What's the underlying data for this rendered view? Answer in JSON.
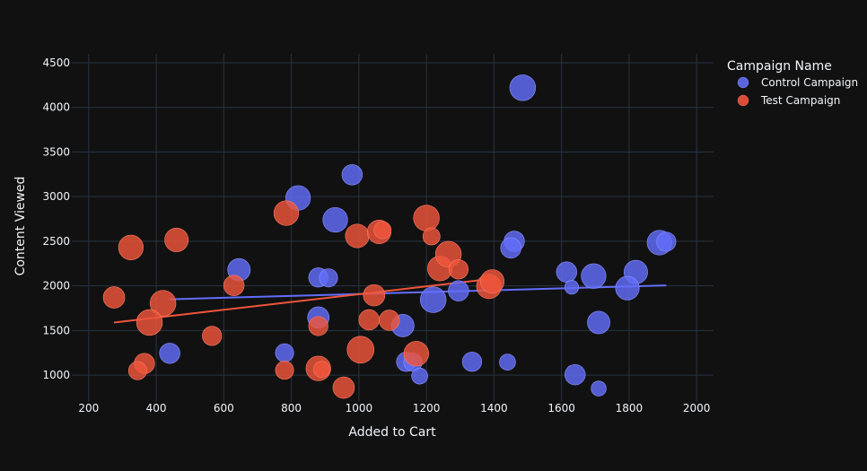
{
  "chart_data": {
    "type": "scatter",
    "title": "",
    "xlabel": "Added to Cart",
    "ylabel": "Content Viewed",
    "xlim": [
      150,
      2050
    ],
    "ylim": [
      700,
      4600
    ],
    "xticks": [
      200,
      400,
      600,
      800,
      1000,
      1200,
      1400,
      1600,
      1800,
      2000
    ],
    "yticks": [
      1000,
      1500,
      2000,
      2500,
      3000,
      3500,
      4000,
      4500
    ],
    "legend_title": "Campaign Name",
    "legend_position": "top-right",
    "series": [
      {
        "name": "Control Campaign",
        "color": "#636efa",
        "trendline": [
          [
            440,
            1850
          ],
          [
            1910,
            2005
          ]
        ],
        "points": [
          {
            "x": 1485,
            "y": 4220,
            "size": 1.2
          },
          {
            "x": 980,
            "y": 3245,
            "size": 0.95
          },
          {
            "x": 820,
            "y": 2985,
            "size": 1.15
          },
          {
            "x": 930,
            "y": 2740,
            "size": 1.15
          },
          {
            "x": 645,
            "y": 2180,
            "size": 1.05
          },
          {
            "x": 880,
            "y": 2095,
            "size": 0.9
          },
          {
            "x": 910,
            "y": 2090,
            "size": 0.85
          },
          {
            "x": 1460,
            "y": 2500,
            "size": 0.95
          },
          {
            "x": 1450,
            "y": 2425,
            "size": 0.95
          },
          {
            "x": 1615,
            "y": 2155,
            "size": 0.95
          },
          {
            "x": 1630,
            "y": 1985,
            "size": 0.65
          },
          {
            "x": 1695,
            "y": 2110,
            "size": 1.15
          },
          {
            "x": 1820,
            "y": 2155,
            "size": 1.1
          },
          {
            "x": 1795,
            "y": 1975,
            "size": 1.1
          },
          {
            "x": 1890,
            "y": 2485,
            "size": 1.15
          },
          {
            "x": 1910,
            "y": 2495,
            "size": 0.9
          },
          {
            "x": 1295,
            "y": 1945,
            "size": 0.95
          },
          {
            "x": 1220,
            "y": 1845,
            "size": 1.2
          },
          {
            "x": 880,
            "y": 1645,
            "size": 1.0
          },
          {
            "x": 1130,
            "y": 1555,
            "size": 1.05
          },
          {
            "x": 1710,
            "y": 1590,
            "size": 1.05
          },
          {
            "x": 440,
            "y": 1245,
            "size": 0.95
          },
          {
            "x": 780,
            "y": 1250,
            "size": 0.85
          },
          {
            "x": 1140,
            "y": 1150,
            "size": 0.9
          },
          {
            "x": 1160,
            "y": 1145,
            "size": 0.85
          },
          {
            "x": 1180,
            "y": 990,
            "size": 0.75
          },
          {
            "x": 1335,
            "y": 1150,
            "size": 0.9
          },
          {
            "x": 1440,
            "y": 1145,
            "size": 0.75
          },
          {
            "x": 1640,
            "y": 1005,
            "size": 0.95
          },
          {
            "x": 1710,
            "y": 850,
            "size": 0.7
          }
        ]
      },
      {
        "name": "Test Campaign",
        "color": "#ef553b",
        "trendline": [
          [
            275,
            1590
          ],
          [
            1395,
            2080
          ]
        ],
        "points": [
          {
            "x": 275,
            "y": 1870,
            "size": 1.0
          },
          {
            "x": 325,
            "y": 2430,
            "size": 1.15
          },
          {
            "x": 460,
            "y": 2515,
            "size": 1.1
          },
          {
            "x": 420,
            "y": 1805,
            "size": 1.2
          },
          {
            "x": 380,
            "y": 1590,
            "size": 1.2
          },
          {
            "x": 365,
            "y": 1130,
            "size": 0.95
          },
          {
            "x": 345,
            "y": 1050,
            "size": 0.85
          },
          {
            "x": 565,
            "y": 1440,
            "size": 0.9
          },
          {
            "x": 630,
            "y": 2005,
            "size": 0.95
          },
          {
            "x": 785,
            "y": 2815,
            "size": 1.15
          },
          {
            "x": 780,
            "y": 1055,
            "size": 0.85
          },
          {
            "x": 880,
            "y": 1550,
            "size": 0.9
          },
          {
            "x": 880,
            "y": 1075,
            "size": 1.15
          },
          {
            "x": 890,
            "y": 1065,
            "size": 0.75
          },
          {
            "x": 955,
            "y": 860,
            "size": 1.0
          },
          {
            "x": 995,
            "y": 2560,
            "size": 1.1
          },
          {
            "x": 1005,
            "y": 1285,
            "size": 1.25
          },
          {
            "x": 1030,
            "y": 1620,
            "size": 0.95
          },
          {
            "x": 1045,
            "y": 1895,
            "size": 1.0
          },
          {
            "x": 1060,
            "y": 2605,
            "size": 1.1
          },
          {
            "x": 1070,
            "y": 2625,
            "size": 0.8
          },
          {
            "x": 1090,
            "y": 1615,
            "size": 0.95
          },
          {
            "x": 1170,
            "y": 1240,
            "size": 1.15
          },
          {
            "x": 1200,
            "y": 2760,
            "size": 1.2
          },
          {
            "x": 1215,
            "y": 2555,
            "size": 0.8
          },
          {
            "x": 1240,
            "y": 2195,
            "size": 1.15
          },
          {
            "x": 1265,
            "y": 2355,
            "size": 1.2
          },
          {
            "x": 1295,
            "y": 2185,
            "size": 0.9
          },
          {
            "x": 1385,
            "y": 1995,
            "size": 1.15
          },
          {
            "x": 1395,
            "y": 2050,
            "size": 1.1
          }
        ]
      }
    ]
  }
}
